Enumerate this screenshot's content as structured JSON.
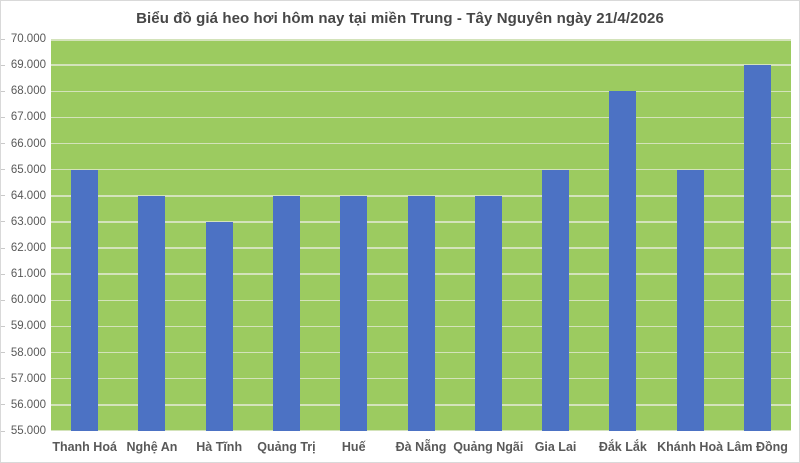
{
  "chart_data": {
    "type": "bar",
    "title": "Biểu đồ giá heo hơi hôm nay tại miền Trung - Tây Nguyên ngày 21/4/2026",
    "categories": [
      "Thanh Hoá",
      "Nghệ An",
      "Hà Tĩnh",
      "Quảng Trị",
      "Huế",
      "Đà Nẵng",
      "Quảng Ngãi",
      "Gia Lai",
      "Đắk Lắk",
      "Khánh Hoà",
      "Lâm Đồng"
    ],
    "values": [
      65000,
      64000,
      63000,
      64000,
      64000,
      64000,
      64000,
      65000,
      68000,
      65000,
      69000
    ],
    "xlabel": "",
    "ylabel": "",
    "ylim": [
      55000,
      70000
    ],
    "ytick_step": 1000,
    "ytick_labels": [
      "55.000",
      "56.000",
      "57.000",
      "58.000",
      "59.000",
      "60.000",
      "61.000",
      "62.000",
      "63.000",
      "64.000",
      "65.000",
      "66.000",
      "67.000",
      "68.000",
      "69.000",
      "70.000"
    ],
    "grid": true,
    "legend": false,
    "colors": {
      "bar": "#4C72C4",
      "plot_background": "#9CCB60",
      "gridline": "#D3E3BA",
      "axis_text": "#595959",
      "title_text": "#474747",
      "tick_mark": "#C9C9C9",
      "frame_border": "#D9D9D9"
    }
  }
}
